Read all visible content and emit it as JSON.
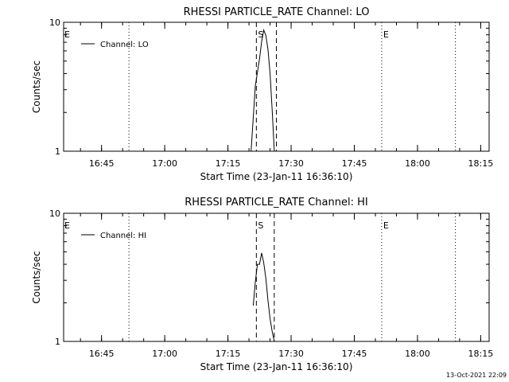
{
  "timestamp": "13-Oct-2021 22:09",
  "chart_data": [
    {
      "type": "line",
      "title": "RHESSI PARTICLE_RATE Channel: LO",
      "xlabel": "Start Time (23-Jan-11 16:36:10)",
      "ylabel": "Counts/sec",
      "y_scale": "log",
      "ylim": [
        1,
        10
      ],
      "y_ticks": [
        "1",
        "10"
      ],
      "xlim": [
        "16:36",
        "18:17"
      ],
      "x_ticks": [
        "16:45",
        "17:00",
        "17:15",
        "17:30",
        "17:45",
        "18:00",
        "18:15"
      ],
      "legend": {
        "position": "top-left",
        "entries": [
          "Channel: LO"
        ]
      },
      "series": [
        {
          "name": "Channel: LO",
          "x": [
            "17:20:30",
            "17:21:30",
            "17:22:30",
            "17:23:00",
            "17:23:30",
            "17:24:00",
            "17:24:30",
            "17:25:00",
            "17:25:30",
            "17:26:00"
          ],
          "y": [
            1.0,
            3.2,
            5.2,
            7.1,
            8.7,
            7.9,
            6.2,
            4.0,
            2.1,
            1.0
          ]
        }
      ],
      "markers": [
        {
          "time": "16:51:30",
          "style": "dotted",
          "label": ""
        },
        {
          "time": "17:21:45",
          "style": "dashed",
          "label": "S"
        },
        {
          "time": "17:26:30",
          "style": "dashed",
          "label": ""
        },
        {
          "time": "17:51:30",
          "style": "dotted",
          "label": "E"
        },
        {
          "time": "18:09:00",
          "style": "dotted",
          "label": ""
        }
      ],
      "edge_label": "E"
    },
    {
      "type": "line",
      "title": "RHESSI PARTICLE_RATE Channel: HI",
      "xlabel": "Start Time (23-Jan-11 16:36:10)",
      "ylabel": "Counts/sec",
      "y_scale": "log",
      "ylim": [
        1,
        10
      ],
      "y_ticks": [
        "1",
        "10"
      ],
      "xlim": [
        "16:36",
        "18:17"
      ],
      "x_ticks": [
        "16:45",
        "17:00",
        "17:15",
        "17:30",
        "17:45",
        "18:00",
        "18:15"
      ],
      "legend": {
        "position": "top-left",
        "entries": [
          "Channel: HI"
        ]
      },
      "series": [
        {
          "name": "Channel: HI",
          "x": [
            "17:21:00",
            "17:21:30",
            "17:22:00",
            "17:22:30",
            "17:23:00",
            "17:23:30",
            "17:24:00",
            "17:24:30",
            "17:25:00",
            "17:25:30",
            "17:26:00"
          ],
          "y": [
            1.9,
            2.9,
            4.0,
            4.0,
            4.9,
            4.1,
            3.1,
            2.1,
            1.5,
            1.2,
            1.0
          ]
        }
      ],
      "markers": [
        {
          "time": "16:51:30",
          "style": "dotted",
          "label": ""
        },
        {
          "time": "17:21:45",
          "style": "dashed",
          "label": "S"
        },
        {
          "time": "17:26:00",
          "style": "dashed",
          "label": ""
        },
        {
          "time": "17:51:30",
          "style": "dotted",
          "label": "E"
        },
        {
          "time": "18:09:00",
          "style": "dotted",
          "label": ""
        }
      ],
      "edge_label": "E"
    }
  ]
}
